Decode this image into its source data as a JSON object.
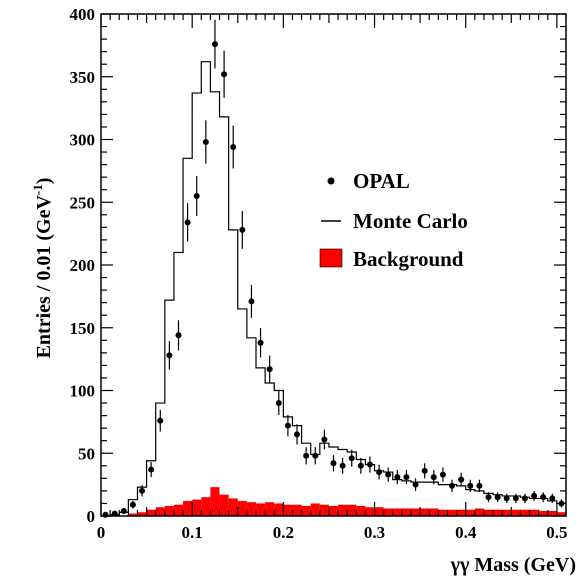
{
  "chart_data": {
    "type": "bar",
    "xlabel": "γγ Mass (GeV)",
    "ylabel": "Entries / 0.01 (GeV",
    "ylabel_sup": "-1",
    "ylabel_close": ")",
    "xlim": [
      0,
      0.51
    ],
    "ylim": [
      0,
      400
    ],
    "x_ticks": [
      "0",
      "0.1",
      "0.2",
      "0.3",
      "0.4",
      "0.5"
    ],
    "x_tick_values": [
      0,
      0.1,
      0.2,
      0.3,
      0.4,
      0.5
    ],
    "y_ticks": [
      "0",
      "50",
      "100",
      "150",
      "200",
      "250",
      "300",
      "350",
      "400"
    ],
    "y_tick_values": [
      0,
      50,
      100,
      150,
      200,
      250,
      300,
      350,
      400
    ],
    "bin_width": 0.01,
    "bin_low_edges": [
      0.0,
      0.01,
      0.02,
      0.03,
      0.04,
      0.05,
      0.06,
      0.07,
      0.08,
      0.09,
      0.1,
      0.11,
      0.12,
      0.13,
      0.14,
      0.15,
      0.16,
      0.17,
      0.18,
      0.19,
      0.2,
      0.21,
      0.22,
      0.23,
      0.24,
      0.25,
      0.26,
      0.27,
      0.28,
      0.29,
      0.3,
      0.31,
      0.32,
      0.33,
      0.34,
      0.35,
      0.36,
      0.37,
      0.38,
      0.39,
      0.4,
      0.41,
      0.42,
      0.43,
      0.44,
      0.45,
      0.46,
      0.47,
      0.48,
      0.49,
      0.5
    ],
    "series": [
      {
        "name": "OPAL",
        "style": "points",
        "x": [
          0.005,
          0.015,
          0.025,
          0.035,
          0.045,
          0.055,
          0.065,
          0.075,
          0.085,
          0.095,
          0.105,
          0.115,
          0.125,
          0.135,
          0.145,
          0.155,
          0.165,
          0.175,
          0.185,
          0.195,
          0.205,
          0.215,
          0.225,
          0.235,
          0.245,
          0.255,
          0.265,
          0.275,
          0.285,
          0.295,
          0.305,
          0.315,
          0.325,
          0.335,
          0.345,
          0.355,
          0.365,
          0.375,
          0.385,
          0.395,
          0.405,
          0.415,
          0.425,
          0.435,
          0.445,
          0.455,
          0.465,
          0.475,
          0.485,
          0.495,
          0.505
        ],
        "values": [
          1,
          2,
          4,
          9,
          20,
          37,
          76,
          128,
          144,
          234,
          255,
          298,
          376,
          352,
          294,
          228,
          171,
          138,
          117,
          90,
          72,
          65,
          48,
          48,
          61,
          42,
          40,
          46,
          40,
          41,
          35,
          33,
          31,
          31,
          25,
          36,
          31,
          33,
          24,
          29,
          24,
          24,
          15,
          15,
          14,
          14,
          14,
          16,
          15,
          14,
          10
        ],
        "errors": [
          1,
          1.5,
          2,
          3,
          4.5,
          6,
          8.7,
          11.3,
          12,
          15.3,
          16,
          17.3,
          19.4,
          18.8,
          17.1,
          15.1,
          13.1,
          11.7,
          10.8,
          9.5,
          8.5,
          8.1,
          6.9,
          6.9,
          7.8,
          6.5,
          6.3,
          6.8,
          6.3,
          6.4,
          5.9,
          5.7,
          5.6,
          5.6,
          5,
          6,
          5.6,
          5.7,
          4.9,
          5.4,
          4.9,
          4.9,
          3.9,
          3.9,
          3.7,
          3.7,
          3.7,
          4,
          3.9,
          3.7,
          3.2
        ],
        "color": "#000000"
      },
      {
        "name": "Monte Carlo",
        "style": "histogram",
        "values": [
          0,
          1,
          3,
          13,
          23,
          44,
          90,
          172,
          210,
          285,
          337,
          362,
          338,
          318,
          228,
          165,
          142,
          118,
          106,
          100,
          79,
          72,
          58,
          49,
          58,
          55,
          53,
          51,
          45,
          41,
          36,
          35,
          29,
          28,
          27,
          27,
          27,
          25,
          25,
          24,
          21,
          20,
          18,
          17,
          16,
          16,
          15,
          14,
          14,
          12,
          10
        ],
        "color": "#000000"
      },
      {
        "name": "Background",
        "style": "filled-histogram",
        "values": [
          0,
          0,
          0,
          2,
          3,
          5,
          7,
          8,
          9,
          12,
          13,
          15,
          23,
          17,
          14,
          12,
          11,
          10,
          11,
          10,
          9,
          9,
          8,
          10,
          9,
          8,
          9,
          9,
          8,
          7,
          7,
          6,
          6,
          6,
          6,
          6,
          6,
          5,
          5,
          5,
          5,
          6,
          5,
          5,
          5,
          5,
          5,
          5,
          4,
          4,
          3
        ],
        "color": "#ff0000"
      }
    ],
    "legend_position": "right-middle",
    "grid": false
  }
}
